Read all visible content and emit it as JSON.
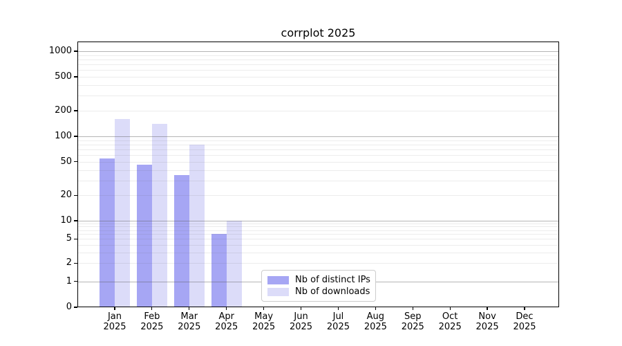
{
  "chart_data": {
    "type": "bar",
    "title": "corrplot 2025",
    "categories": [
      {
        "month": "Jan",
        "year": "2025"
      },
      {
        "month": "Feb",
        "year": "2025"
      },
      {
        "month": "Mar",
        "year": "2025"
      },
      {
        "month": "Apr",
        "year": "2025"
      },
      {
        "month": "May",
        "year": "2025"
      },
      {
        "month": "Jun",
        "year": "2025"
      },
      {
        "month": "Jul",
        "year": "2025"
      },
      {
        "month": "Aug",
        "year": "2025"
      },
      {
        "month": "Sep",
        "year": "2025"
      },
      {
        "month": "Oct",
        "year": "2025"
      },
      {
        "month": "Nov",
        "year": "2025"
      },
      {
        "month": "Dec",
        "year": "2025"
      }
    ],
    "series": [
      {
        "name": "Nb of distinct IPs",
        "color": "#a6a6f4",
        "values": [
          55,
          46,
          35,
          6,
          0,
          0,
          0,
          0,
          0,
          0,
          0,
          0
        ]
      },
      {
        "name": "Nb of downloads",
        "color": "#dcdcf9",
        "values": [
          160,
          140,
          80,
          10,
          0,
          0,
          0,
          0,
          0,
          0,
          0,
          0
        ]
      }
    ],
    "y_axis": {
      "scale": "log-like with 0 baseline",
      "tick_values": [
        0,
        1,
        2,
        5,
        10,
        20,
        50,
        100,
        200,
        500,
        1000
      ],
      "tick_labels": [
        "0",
        "1",
        "2",
        "5",
        "10",
        "20",
        "50",
        "100",
        "200",
        "500",
        "1000"
      ],
      "ylim": [
        0,
        1400
      ]
    },
    "xlabel": "",
    "ylabel": "",
    "grid": "on",
    "legend_position": "lower-center"
  }
}
